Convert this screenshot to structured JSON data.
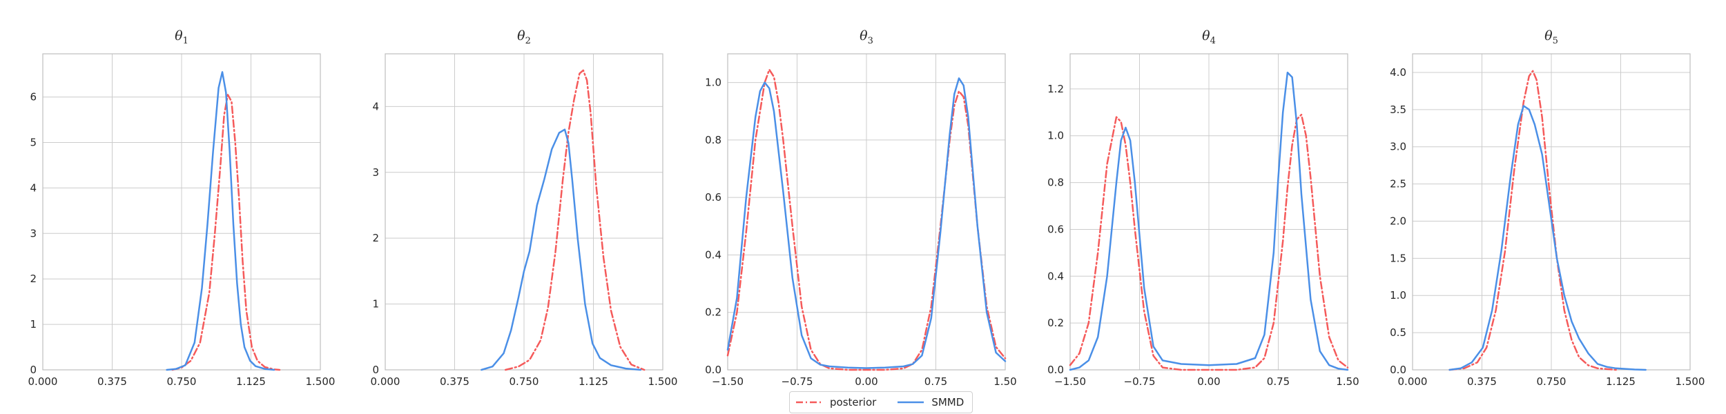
{
  "chart_data": [
    {
      "type": "line",
      "title": "θ",
      "title_sub": "1",
      "xlim": [
        0.0,
        1.5
      ],
      "xticks": [
        "0.000",
        "0.375",
        "0.750",
        "1.125",
        "1.500"
      ],
      "ylim": [
        0,
        6.95
      ],
      "yticks": [
        "0",
        "1",
        "2",
        "3",
        "4",
        "5",
        "6"
      ],
      "grid": true,
      "series": [
        {
          "name": "posterior",
          "style": "dashdot",
          "color": "#f55a5a",
          "x": [
            0.7,
            0.75,
            0.8,
            0.85,
            0.9,
            0.93,
            0.96,
            0.98,
            1.0,
            1.02,
            1.04,
            1.06,
            1.08,
            1.1,
            1.13,
            1.16,
            1.2,
            1.25,
            1.28
          ],
          "y": [
            0.0,
            0.05,
            0.2,
            0.6,
            1.7,
            3.0,
            4.5,
            5.6,
            6.05,
            5.9,
            5.0,
            3.8,
            2.4,
            1.3,
            0.5,
            0.2,
            0.06,
            0.01,
            0.0
          ]
        },
        {
          "name": "SMMD",
          "style": "solid",
          "color": "#4a8fe7",
          "x": [
            0.67,
            0.72,
            0.77,
            0.82,
            0.86,
            0.89,
            0.92,
            0.95,
            0.97,
            0.99,
            1.01,
            1.03,
            1.05,
            1.07,
            1.09,
            1.12,
            1.15,
            1.2,
            1.25
          ],
          "y": [
            0.0,
            0.02,
            0.1,
            0.6,
            1.8,
            3.2,
            4.8,
            6.2,
            6.55,
            6.1,
            4.8,
            3.2,
            1.9,
            1.0,
            0.5,
            0.2,
            0.08,
            0.02,
            0.0
          ]
        }
      ]
    },
    {
      "type": "line",
      "title": "θ",
      "title_sub": "2",
      "xlim": [
        0.0,
        1.5
      ],
      "xticks": [
        "0.000",
        "0.375",
        "0.750",
        "1.125",
        "1.500"
      ],
      "ylim": [
        0,
        4.8
      ],
      "yticks": [
        "0",
        "1",
        "2",
        "3",
        "4"
      ],
      "grid": true,
      "series": [
        {
          "name": "posterior",
          "style": "dashdot",
          "color": "#f55a5a",
          "x": [
            0.65,
            0.72,
            0.78,
            0.84,
            0.88,
            0.92,
            0.96,
            0.99,
            1.02,
            1.05,
            1.07,
            1.09,
            1.11,
            1.14,
            1.18,
            1.22,
            1.27,
            1.33,
            1.4
          ],
          "y": [
            0.0,
            0.05,
            0.15,
            0.45,
            0.95,
            1.8,
            2.9,
            3.6,
            4.1,
            4.5,
            4.55,
            4.4,
            3.9,
            2.8,
            1.7,
            0.9,
            0.35,
            0.08,
            0.0
          ]
        },
        {
          "name": "SMMD",
          "style": "solid",
          "color": "#4a8fe7",
          "x": [
            0.52,
            0.58,
            0.64,
            0.68,
            0.72,
            0.75,
            0.78,
            0.82,
            0.86,
            0.9,
            0.94,
            0.97,
            0.99,
            1.01,
            1.04,
            1.08,
            1.12,
            1.16,
            1.22,
            1.3,
            1.38
          ],
          "y": [
            0.0,
            0.05,
            0.25,
            0.6,
            1.1,
            1.5,
            1.8,
            2.5,
            2.9,
            3.35,
            3.6,
            3.65,
            3.45,
            2.9,
            2.0,
            1.0,
            0.4,
            0.18,
            0.07,
            0.02,
            0.0
          ]
        }
      ]
    },
    {
      "type": "line",
      "title": "θ",
      "title_sub": "3",
      "xlim": [
        -1.5,
        1.5
      ],
      "xticks": [
        "−1.50",
        "−0.75",
        "0.00",
        "0.75",
        "1.50"
      ],
      "ylim": [
        0,
        1.1
      ],
      "yticks": [
        "0.0",
        "0.2",
        "0.4",
        "0.6",
        "0.8",
        "1.0"
      ],
      "grid": true,
      "series": [
        {
          "name": "posterior",
          "style": "dashdot",
          "color": "#f55a5a",
          "x": [
            -1.5,
            -1.4,
            -1.3,
            -1.2,
            -1.1,
            -1.05,
            -1.0,
            -0.95,
            -0.9,
            -0.8,
            -0.7,
            -0.6,
            -0.5,
            -0.4,
            -0.2,
            0.0,
            0.2,
            0.4,
            0.5,
            0.6,
            0.7,
            0.8,
            0.9,
            0.95,
            1.0,
            1.05,
            1.1,
            1.2,
            1.3,
            1.4,
            1.5
          ],
          "y": [
            0.05,
            0.2,
            0.48,
            0.8,
            1.0,
            1.045,
            1.02,
            0.93,
            0.8,
            0.5,
            0.22,
            0.07,
            0.02,
            0.005,
            0.0,
            0.0,
            0.0,
            0.005,
            0.02,
            0.07,
            0.22,
            0.5,
            0.8,
            0.92,
            0.97,
            0.95,
            0.85,
            0.5,
            0.22,
            0.08,
            0.04
          ]
        },
        {
          "name": "SMMD",
          "style": "solid",
          "color": "#4a8fe7",
          "x": [
            -1.5,
            -1.4,
            -1.3,
            -1.2,
            -1.15,
            -1.1,
            -1.05,
            -1.0,
            -0.9,
            -0.8,
            -0.7,
            -0.6,
            -0.5,
            -0.4,
            -0.2,
            0.0,
            0.2,
            0.4,
            0.5,
            0.6,
            0.7,
            0.8,
            0.9,
            0.95,
            1.0,
            1.05,
            1.1,
            1.2,
            1.3,
            1.4,
            1.5
          ],
          "y": [
            0.07,
            0.25,
            0.6,
            0.88,
            0.97,
            1.0,
            0.98,
            0.9,
            0.62,
            0.32,
            0.12,
            0.04,
            0.018,
            0.012,
            0.008,
            0.006,
            0.008,
            0.012,
            0.02,
            0.05,
            0.18,
            0.48,
            0.82,
            0.96,
            1.015,
            0.99,
            0.88,
            0.5,
            0.2,
            0.06,
            0.03
          ]
        }
      ]
    },
    {
      "type": "line",
      "title": "θ",
      "title_sub": "4",
      "xlim": [
        -1.5,
        1.5
      ],
      "xticks": [
        "−1.50",
        "−0.75",
        "0.00",
        "0.75",
        "1.50"
      ],
      "ylim": [
        0,
        1.35
      ],
      "yticks": [
        "0.0",
        "0.2",
        "0.4",
        "0.6",
        "0.8",
        "1.0",
        "1.2"
      ],
      "grid": true,
      "series": [
        {
          "name": "posterior",
          "style": "dashdot",
          "color": "#f55a5a",
          "x": [
            -1.5,
            -1.4,
            -1.3,
            -1.2,
            -1.1,
            -1.0,
            -0.95,
            -0.9,
            -0.85,
            -0.8,
            -0.7,
            -0.6,
            -0.5,
            -0.3,
            0.0,
            0.3,
            0.5,
            0.6,
            0.7,
            0.8,
            0.85,
            0.9,
            0.95,
            1.0,
            1.05,
            1.1,
            1.2,
            1.3,
            1.4,
            1.5
          ],
          "y": [
            0.02,
            0.07,
            0.2,
            0.5,
            0.88,
            1.08,
            1.06,
            0.96,
            0.8,
            0.6,
            0.25,
            0.06,
            0.01,
            0.0,
            0.0,
            0.0,
            0.01,
            0.05,
            0.2,
            0.55,
            0.78,
            0.96,
            1.07,
            1.09,
            1.0,
            0.82,
            0.4,
            0.14,
            0.04,
            0.01
          ]
        },
        {
          "name": "SMMD",
          "style": "solid",
          "color": "#4a8fe7",
          "x": [
            -1.5,
            -1.4,
            -1.3,
            -1.2,
            -1.1,
            -1.0,
            -0.95,
            -0.9,
            -0.85,
            -0.8,
            -0.7,
            -0.6,
            -0.5,
            -0.3,
            0.0,
            0.3,
            0.5,
            0.6,
            0.7,
            0.75,
            0.8,
            0.85,
            0.9,
            0.95,
            1.0,
            1.1,
            1.2,
            1.3,
            1.4,
            1.5
          ],
          "y": [
            0.0,
            0.01,
            0.04,
            0.14,
            0.4,
            0.8,
            0.98,
            1.035,
            0.98,
            0.8,
            0.35,
            0.1,
            0.04,
            0.025,
            0.02,
            0.025,
            0.05,
            0.15,
            0.5,
            0.82,
            1.1,
            1.27,
            1.25,
            1.05,
            0.75,
            0.3,
            0.08,
            0.02,
            0.005,
            0.0
          ]
        }
      ]
    },
    {
      "type": "line",
      "title": "θ",
      "title_sub": "5",
      "xlim": [
        0.0,
        1.5
      ],
      "xticks": [
        "0.000",
        "0.375",
        "0.750",
        "1.125",
        "1.500"
      ],
      "ylim": [
        0,
        4.25
      ],
      "yticks": [
        "0.0",
        "0.5",
        "1.0",
        "1.5",
        "2.0",
        "2.5",
        "3.0",
        "3.5",
        "4.0"
      ],
      "grid": true,
      "series": [
        {
          "name": "posterior",
          "style": "dashdot",
          "color": "#f55a5a",
          "x": [
            0.2,
            0.28,
            0.35,
            0.4,
            0.45,
            0.5,
            0.55,
            0.6,
            0.63,
            0.65,
            0.67,
            0.7,
            0.74,
            0.78,
            0.82,
            0.86,
            0.9,
            0.95,
            1.0,
            1.05,
            1.1
          ],
          "y": [
            0.0,
            0.02,
            0.1,
            0.3,
            0.8,
            1.6,
            2.7,
            3.6,
            3.95,
            4.02,
            3.9,
            3.4,
            2.4,
            1.5,
            0.8,
            0.4,
            0.17,
            0.06,
            0.02,
            0.01,
            0.0
          ]
        },
        {
          "name": "SMMD",
          "style": "solid",
          "color": "#4a8fe7",
          "x": [
            0.2,
            0.26,
            0.32,
            0.38,
            0.43,
            0.48,
            0.53,
            0.57,
            0.6,
            0.63,
            0.66,
            0.7,
            0.74,
            0.78,
            0.82,
            0.86,
            0.9,
            0.95,
            1.0,
            1.05,
            1.1,
            1.2,
            1.26
          ],
          "y": [
            0.0,
            0.02,
            0.1,
            0.3,
            0.8,
            1.6,
            2.6,
            3.3,
            3.55,
            3.5,
            3.3,
            2.9,
            2.2,
            1.5,
            1.0,
            0.65,
            0.42,
            0.22,
            0.08,
            0.04,
            0.02,
            0.005,
            0.0
          ]
        }
      ]
    }
  ],
  "legend": {
    "entries": [
      {
        "label": "posterior",
        "style": "dashdot",
        "color": "#f55a5a"
      },
      {
        "label": "SMMD",
        "style": "solid",
        "color": "#4a8fe7"
      }
    ]
  }
}
